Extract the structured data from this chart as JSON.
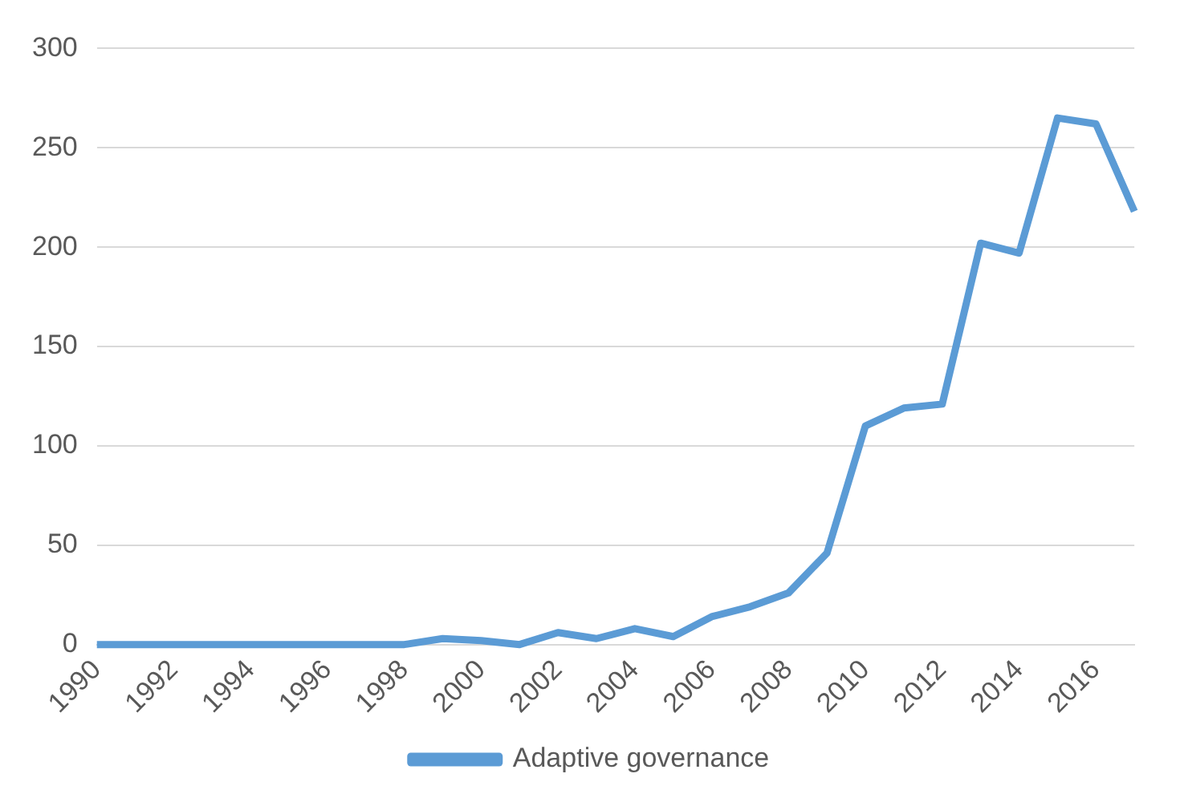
{
  "chart_data": {
    "type": "line",
    "categories": [
      "1990",
      null,
      "1992",
      null,
      "1994",
      null,
      "1996",
      null,
      "1998",
      null,
      "2000",
      null,
      "2002",
      null,
      "2004",
      null,
      "2006",
      null,
      "2008",
      null,
      "2010",
      null,
      "2012",
      null,
      "2014",
      null,
      "2016",
      null
    ],
    "series": [
      {
        "name": "Adaptive governance",
        "color": "#5b9bd5",
        "values": [
          0,
          0,
          0,
          0,
          0,
          0,
          0,
          0,
          0,
          3,
          2,
          0,
          6,
          3,
          8,
          4,
          14,
          19,
          26,
          46,
          110,
          119,
          121,
          202,
          197,
          265,
          262,
          218
        ]
      }
    ],
    "ylim": [
      0,
      300
    ],
    "yticks": [
      0,
      50,
      100,
      150,
      200,
      250,
      300
    ],
    "grid": "y",
    "legend": "bottom",
    "marker": "none",
    "line_style": "solid"
  }
}
